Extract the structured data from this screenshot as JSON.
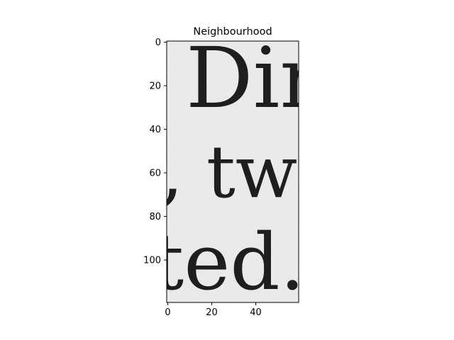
{
  "chart_data": {
    "type": "heatmap",
    "title": "Neighbourhood",
    "xlabel": "",
    "ylabel": "",
    "xlim": [
      -0.5,
      59.5
    ],
    "ylim": [
      119.5,
      -0.5
    ],
    "x_ticks": [
      0,
      20,
      40
    ],
    "y_ticks": [
      0,
      20,
      40,
      60,
      80,
      100
    ],
    "colormap": "gray",
    "grid": false,
    "image_content": {
      "description_text": [
        "Dir",
        "tw",
        "ted."
      ]
    }
  }
}
